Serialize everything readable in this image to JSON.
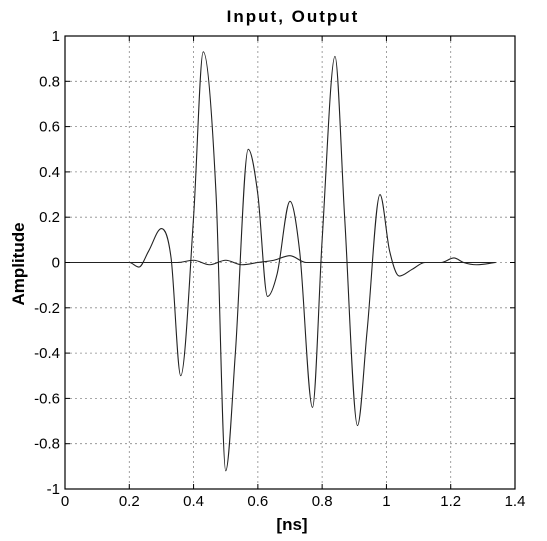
{
  "chart_data": {
    "type": "line",
    "title": "Input, Output",
    "xlabel": "[ns]",
    "ylabel": "Amplitude",
    "xlim": [
      0,
      1.4
    ],
    "ylim": [
      -1,
      1
    ],
    "grid": true,
    "x_ticks": [
      "0",
      "0.2",
      "0.4",
      "0.6",
      "0.8",
      "1",
      "1.2",
      "1.4"
    ],
    "y_ticks": [
      "1",
      "0.8",
      "0.6",
      "0.4",
      "0.2",
      "0",
      "-0.2",
      "-0.4",
      "-0.6",
      "-0.8",
      "-1"
    ],
    "series": [
      {
        "x": [
          0,
          0.2,
          0.23,
          0.26,
          0.3,
          0.33,
          0.36,
          0.4,
          0.43,
          0.47,
          0.5,
          0.53,
          0.57,
          0.6,
          0.63,
          0.66,
          0.7,
          0.73,
          0.77,
          0.8,
          0.84,
          0.87,
          0.91,
          0.94,
          0.98,
          1.01,
          1.04,
          1.08,
          1.12,
          1.17,
          1.21,
          1.24,
          1.28,
          1.34
        ],
        "values": [
          0,
          0,
          -0.02,
          0.05,
          0.15,
          0.02,
          -0.5,
          0.2,
          0.93,
          0.3,
          -0.92,
          -0.4,
          0.5,
          0.3,
          -0.15,
          -0.05,
          0.27,
          0.05,
          -0.64,
          0.1,
          0.91,
          0.2,
          -0.72,
          -0.3,
          0.3,
          0.05,
          -0.06,
          -0.03,
          0.0,
          0.0,
          0.02,
          0.0,
          -0.01,
          0
        ]
      },
      {
        "x": [
          0,
          0.35,
          0.4,
          0.45,
          0.5,
          0.55,
          0.6,
          0.65,
          0.7,
          0.75,
          0.8,
          0.9,
          1.0,
          1.34
        ],
        "values": [
          0,
          0,
          0.01,
          -0.01,
          0.01,
          -0.01,
          0.0,
          0.01,
          0.03,
          0.0,
          0.0,
          0.0,
          0.0,
          0
        ]
      }
    ]
  }
}
